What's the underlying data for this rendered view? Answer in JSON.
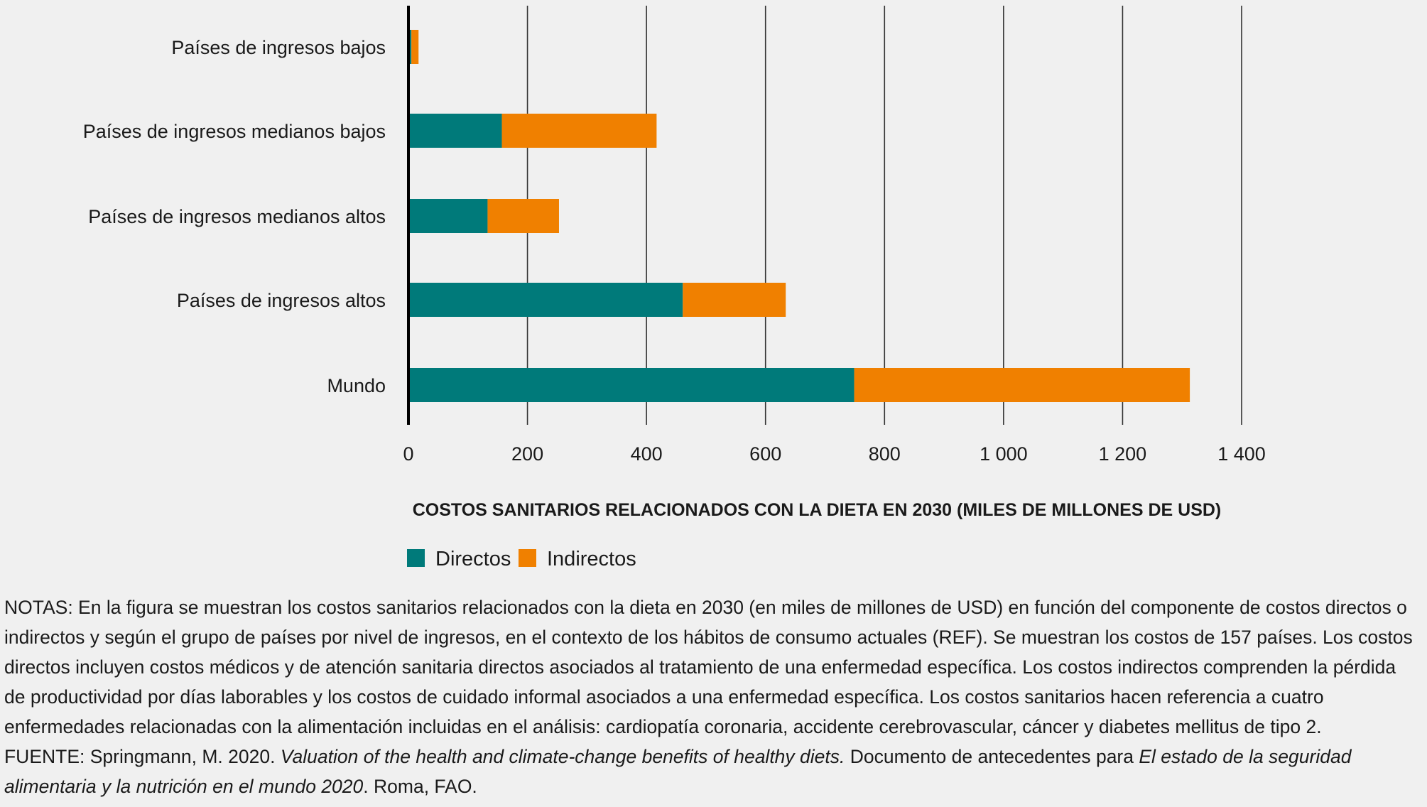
{
  "chart_data": {
    "type": "bar",
    "orientation": "horizontal",
    "stacked": true,
    "categories": [
      "Países de ingresos bajos",
      "Países de ingresos medianos bajos",
      "Países de ingresos medianos altos",
      "Países de ingresos altos",
      "Mundo"
    ],
    "series": [
      {
        "name": "Directos",
        "color": "#007a7a",
        "values": [
          5,
          157,
          133,
          461,
          749
        ]
      },
      {
        "name": "Indirectos",
        "color": "#f08000",
        "values": [
          12,
          260,
          120,
          173,
          564
        ]
      }
    ],
    "xlim": [
      0,
      1400
    ],
    "xticks": [
      0,
      200,
      400,
      600,
      800,
      1000,
      1200,
      1400
    ],
    "xtick_labels": [
      "0",
      "200",
      "400",
      "600",
      "800",
      "1 000",
      "1 200",
      "1 400"
    ],
    "xlabel": "COSTOS SANITARIOS RELACIONADOS CON LA DIETA EN 2030 (MILES DE MILLONES DE USD)",
    "grid": true,
    "legend_position": "bottom-center"
  },
  "notes": {
    "notas": "NOTAS: En la figura se muestran los costos sanitarios relacionados con la dieta en 2030 (en miles de millones de USD) en función del componente de costos directos o indirectos y según el grupo de países por nivel de ingresos, en el contexto de los hábitos de consumo actuales (REF). Se muestran los costos de 157 países. Los costos directos incluyen costos médicos y de atención sanitaria directos asociados al tratamiento de una enfermedad específica. Los costos indirectos comprenden la pérdida de productividad por días laborables y los costos de cuidado informal asociados a una enfermedad específica. Los costos sanitarios hacen referencia a cuatro enfermedades relacionadas con la alimentación incluidas en el análisis: cardiopatía coronaria, accidente cerebrovascular, cáncer y diabetes mellitus de tipo 2.",
    "fuente_prefix": "FUENTE: Springmann, M. 2020. ",
    "fuente_title": "Valuation of the health and climate-change benefits of healthy diets.",
    "fuente_middle": " Documento de antecedentes para ",
    "fuente_report": "El estado de la seguridad alimentaria y la nutrición en el mundo 2020",
    "fuente_suffix": ". Roma, FAO."
  }
}
